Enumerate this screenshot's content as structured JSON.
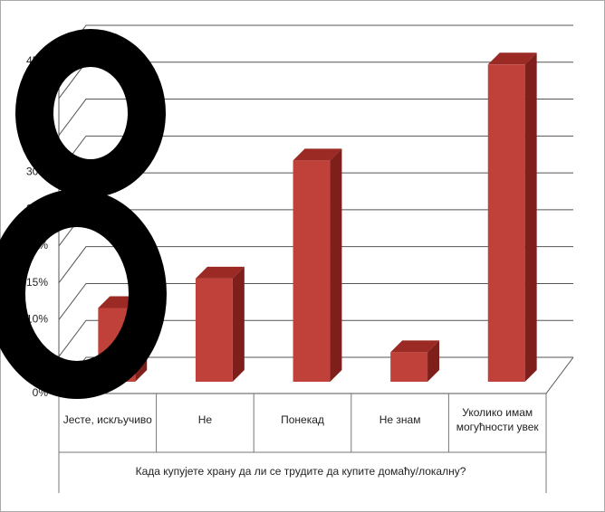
{
  "chart_data": {
    "type": "bar3d",
    "x_label": "Када купујете храну да ли се трудите да купите домаћу/локалну?",
    "categories": [
      [
        "Јесте, искључиво"
      ],
      [
        "Не"
      ],
      [
        "Понекад"
      ],
      [
        "Не знам"
      ],
      [
        "Уколико имам",
        "могућности увек"
      ]
    ],
    "values": [
      10,
      14,
      30,
      4,
      43
    ],
    "color": "#c0403a",
    "ylim": [
      0,
      45
    ],
    "yticks": [
      {
        "value": 0,
        "label": "0%"
      },
      {
        "value": 5,
        "label": "5%"
      },
      {
        "value": 10,
        "label": "10%"
      },
      {
        "value": 15,
        "label": "15%"
      },
      {
        "value": 20,
        "label": "20%"
      },
      {
        "value": 25,
        "label": "25%"
      },
      {
        "value": 30,
        "label": "30%"
      },
      {
        "value": 35,
        "label": "35%"
      },
      {
        "value": 40,
        "label": "40%"
      },
      {
        "value": 45,
        "label": "45%"
      }
    ],
    "grid": true
  }
}
